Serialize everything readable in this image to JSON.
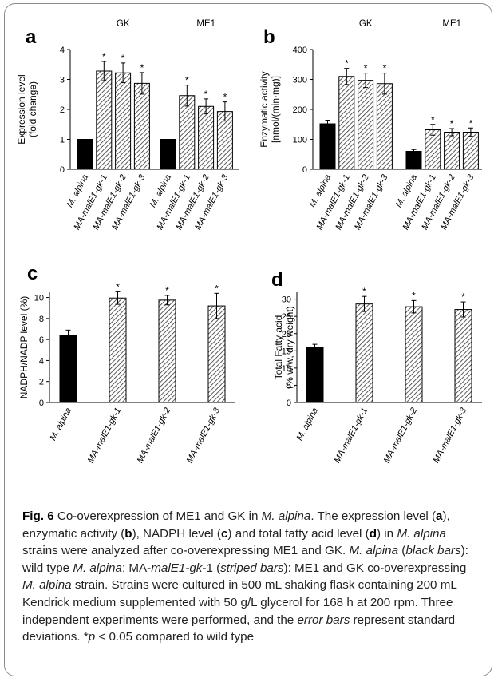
{
  "chart_data": [
    {
      "panel": "a",
      "type": "bar",
      "ylabel": "Expression level\n(fold change)",
      "ylim": [
        0,
        4
      ],
      "yticks": [
        0,
        1,
        2,
        3,
        4
      ],
      "groups": [
        {
          "label": "GK",
          "categories": [
            "M. alpina",
            "MA-malE1-gk-1",
            "MA-malE1-gk-2",
            "MA-malE1-gk-3"
          ],
          "values": [
            1.0,
            3.28,
            3.22,
            2.87
          ],
          "errors": [
            0,
            0.32,
            0.33,
            0.36
          ],
          "significant": [
            false,
            true,
            true,
            true
          ]
        },
        {
          "label": "ME1",
          "categories": [
            "M. alpina",
            "MA-malE1-gk-1",
            "MA-malE1-gk-2",
            "MA-malE1-gk-3"
          ],
          "values": [
            1.0,
            2.46,
            2.1,
            1.93
          ],
          "errors": [
            0,
            0.35,
            0.25,
            0.32
          ],
          "significant": [
            false,
            true,
            true,
            true
          ]
        }
      ]
    },
    {
      "panel": "b",
      "type": "bar",
      "ylabel": "Enzymatic activity\n[nmol/(min·mg)]",
      "ylim": [
        0,
        400
      ],
      "yticks": [
        0,
        100,
        200,
        300,
        400
      ],
      "groups": [
        {
          "label": "GK",
          "categories": [
            "M. alpina",
            "MA-malE1-gk-1",
            "MA-malE1-gk-2",
            "MA-malE1-gk-3"
          ],
          "values": [
            152,
            310,
            297,
            286
          ],
          "errors": [
            12,
            27,
            24,
            35
          ],
          "significant": [
            false,
            true,
            true,
            true
          ]
        },
        {
          "label": "ME1",
          "categories": [
            "M. alpina",
            "MA-malE1-gk-1",
            "MA-malE1-gk-2",
            "MA-malE1-gk-3"
          ],
          "values": [
            60,
            132,
            124,
            124
          ],
          "errors": [
            6,
            18,
            12,
            14
          ],
          "significant": [
            false,
            true,
            true,
            true
          ]
        }
      ]
    },
    {
      "panel": "c",
      "type": "bar",
      "ylabel": "NADPH/NADP level (%)",
      "ylim": [
        0,
        10.5
      ],
      "yticks": [
        0,
        2,
        4,
        6,
        8,
        10
      ],
      "groups": [
        {
          "label": "",
          "categories": [
            "M. alpina",
            "MA-malE1-gk-1",
            "MA-malE1-gk-2",
            "MA-malE1-gk-3"
          ],
          "values": [
            6.4,
            9.95,
            9.75,
            9.2
          ],
          "errors": [
            0.5,
            0.6,
            0.45,
            1.2
          ],
          "significant": [
            false,
            true,
            true,
            true
          ]
        }
      ]
    },
    {
      "panel": "d",
      "type": "bar",
      "ylabel": "Total Fatty acid\n(% w/w, dry weight)",
      "ylim": [
        0,
        32
      ],
      "yticks": [
        0,
        5,
        10,
        15,
        20,
        25,
        30
      ],
      "groups": [
        {
          "label": "",
          "categories": [
            "M. alpina",
            "MA-malE1-gk-1",
            "MA-malE1-gk-2",
            "MA-malE1-gk-3"
          ],
          "values": [
            15.9,
            28.6,
            27.8,
            27.0
          ],
          "errors": [
            1.0,
            2.2,
            1.8,
            2.2
          ],
          "significant": [
            false,
            true,
            true,
            true
          ]
        }
      ]
    }
  ],
  "caption": {
    "label": "Fig. 6",
    "text_html": " Co-overexpression of ME1 and GK in <i>M. alpina</i>. The expression level (<b>a</b>), enzymatic activity (<b>b</b>), NADPH level (<b>c</b>) and total fatty acid level (<b>d</b>) in <i>M. alpina</i> strains were analyzed after co-overexpressing ME1 and GK. <i>M. alpina</i> (<i>black bars</i>): wild type <i>M. alpina</i>; MA-<i>malE1-gk</i>-1 (<i>striped bars</i>): ME1 and GK co-overexpressing <i>M. alpina</i> strain. Strains were cultured in 500 mL shaking flask containing 200 mL Kendrick medium supplemented with 50 g/L glycerol for 168 h at 200 rpm. Three independent experiments were performed, and the <i>error bars</i> represent standard deviations. *<i>p</i> &lt; 0.05 compared to wild type"
  }
}
